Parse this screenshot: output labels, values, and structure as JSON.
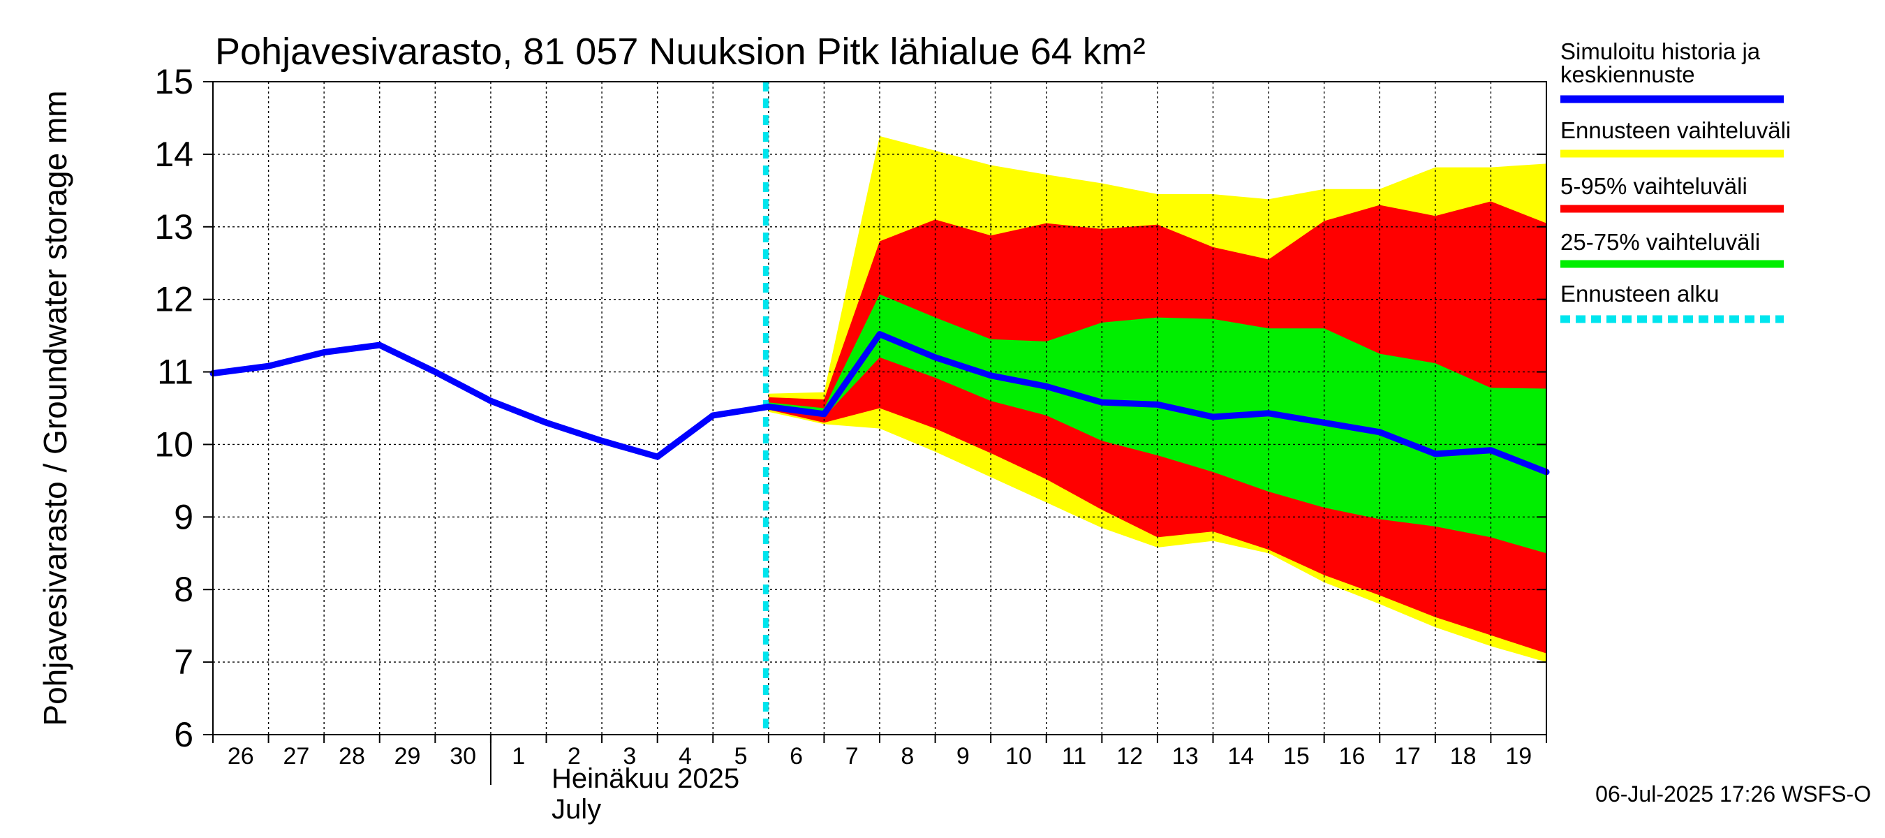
{
  "chart_data": {
    "type": "area",
    "title": "Pohjavesivarasto, 81 057 Nuuksion Pitk lähialue 64 km²",
    "ylabel": "Pohjavesivarasto / Groundwater storage   mm",
    "ylim": [
      6,
      15
    ],
    "yticks": [
      6,
      7,
      8,
      9,
      10,
      11,
      12,
      13,
      14,
      15
    ],
    "x_days": [
      "26",
      "27",
      "28",
      "29",
      "30",
      "1",
      "2",
      "3",
      "4",
      "5",
      "6",
      "7",
      "8",
      "9",
      "10",
      "11",
      "12",
      "13",
      "14",
      "15",
      "16",
      "17",
      "18",
      "19"
    ],
    "month_label": "Heinäkuu  2025",
    "month_label_en": "July",
    "forecast_start_day_index": 9.95,
    "history": {
      "name": "Simuloitu historia ja keskiennuste",
      "x": [
        0,
        1,
        2,
        3,
        4,
        5,
        6,
        7,
        8,
        9,
        10
      ],
      "y": [
        10.98,
        11.08,
        11.27,
        11.37,
        11.0,
        10.6,
        10.3,
        10.05,
        9.83,
        10.4,
        10.52
      ]
    },
    "median": {
      "x": [
        10,
        11,
        12,
        13,
        14,
        15,
        16,
        17,
        18,
        19,
        20,
        21,
        22,
        23,
        24
      ],
      "y": [
        10.52,
        10.42,
        11.52,
        11.2,
        10.95,
        10.8,
        10.58,
        10.55,
        10.38,
        10.43,
        10.3,
        10.17,
        9.87,
        9.92,
        9.62
      ]
    },
    "band_full": {
      "name": "Ennusteen vaihteluväli",
      "x": [
        10,
        11,
        12,
        13,
        14,
        15,
        16,
        17,
        18,
        19,
        20,
        21,
        22,
        23,
        24
      ],
      "upper": [
        10.7,
        10.72,
        14.25,
        14.05,
        13.85,
        13.72,
        13.6,
        13.45,
        13.45,
        13.38,
        13.52,
        13.52,
        13.82,
        13.82,
        13.87
      ],
      "lower": [
        10.45,
        10.28,
        10.22,
        9.9,
        9.55,
        9.2,
        8.85,
        8.58,
        8.67,
        8.5,
        8.1,
        7.8,
        7.48,
        7.22,
        7.0
      ]
    },
    "band_5_95": {
      "name": "5-95% vaihteluväli",
      "x": [
        10,
        11,
        12,
        13,
        14,
        15,
        16,
        17,
        18,
        19,
        20,
        21,
        22,
        23,
        24
      ],
      "upper": [
        10.65,
        10.62,
        12.8,
        13.1,
        12.88,
        13.05,
        12.97,
        13.03,
        12.72,
        12.55,
        13.08,
        13.3,
        13.15,
        13.35,
        13.05
      ],
      "lower": [
        10.48,
        10.3,
        10.5,
        10.22,
        9.88,
        9.52,
        9.1,
        8.72,
        8.8,
        8.55,
        8.2,
        7.92,
        7.62,
        7.37,
        7.12
      ]
    },
    "band_25_75": {
      "name": "25-75% vaihteluväli",
      "x": [
        10,
        11,
        12,
        13,
        14,
        15,
        16,
        17,
        18,
        19,
        20,
        21,
        22,
        23,
        24
      ],
      "upper": [
        10.58,
        10.5,
        12.07,
        11.75,
        11.45,
        11.42,
        11.68,
        11.75,
        11.73,
        11.6,
        11.6,
        11.25,
        11.12,
        10.78,
        10.77
      ],
      "lower": [
        10.5,
        10.38,
        11.2,
        10.92,
        10.6,
        10.4,
        10.05,
        9.85,
        9.62,
        9.35,
        9.13,
        8.97,
        8.87,
        8.72,
        8.5
      ]
    },
    "legend": [
      {
        "key": "history",
        "label": "Simuloitu historia ja keskiennuste",
        "color": "#0000ff",
        "style": "solid"
      },
      {
        "key": "band_full",
        "label": "Ennusteen vaihteluväli",
        "color": "#ffff00",
        "style": "solid"
      },
      {
        "key": "band_5_95",
        "label": "5-95% vaihteluväli",
        "color": "#ff0000",
        "style": "solid"
      },
      {
        "key": "band_25_75",
        "label": "25-75% vaihteluväli",
        "color": "#00ee00",
        "style": "solid"
      },
      {
        "key": "forecast_start",
        "label": "Ennusteen alku",
        "color": "#00e5ee",
        "style": "dashed"
      }
    ],
    "legend_position": "right",
    "footer": "06-Jul-2025 17:26 WSFS-O",
    "colors": {
      "history": "#0000ff",
      "band_full": "#ffff00",
      "band_5_95": "#ff0000",
      "band_25_75": "#00ee00",
      "forecast_start": "#00e5ee"
    }
  }
}
